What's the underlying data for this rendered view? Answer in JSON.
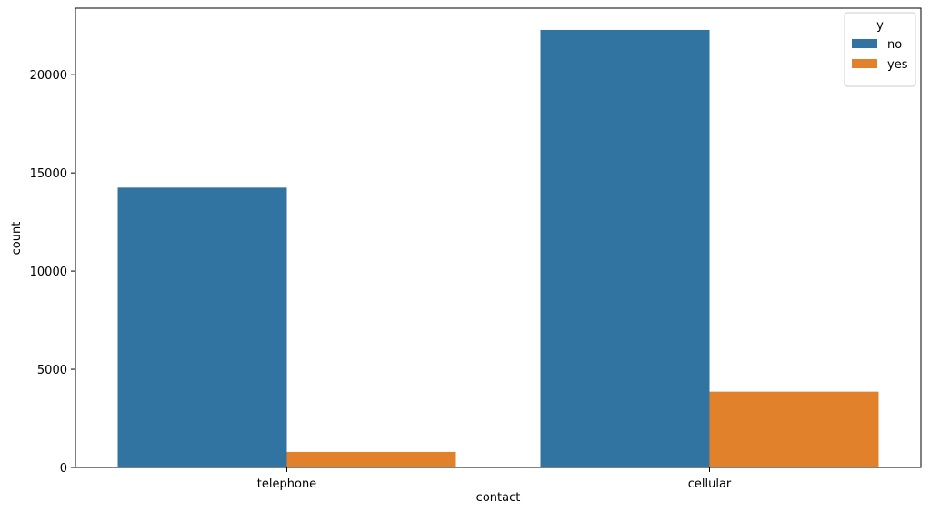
{
  "chart_data": {
    "type": "bar",
    "title": "",
    "xlabel": "contact",
    "ylabel": "count",
    "categories": [
      "telephone",
      "cellular"
    ],
    "series": [
      {
        "name": "no",
        "values": [
          14250,
          22280
        ],
        "color": "#3274a1"
      },
      {
        "name": "yes",
        "values": [
          790,
          3860
        ],
        "color": "#e1812c"
      }
    ],
    "ylim": [
      0,
      23390
    ],
    "yticks": [
      0,
      5000,
      10000,
      15000,
      20000
    ],
    "grid": false,
    "legend": {
      "title": "y",
      "placement": "top-right"
    }
  }
}
